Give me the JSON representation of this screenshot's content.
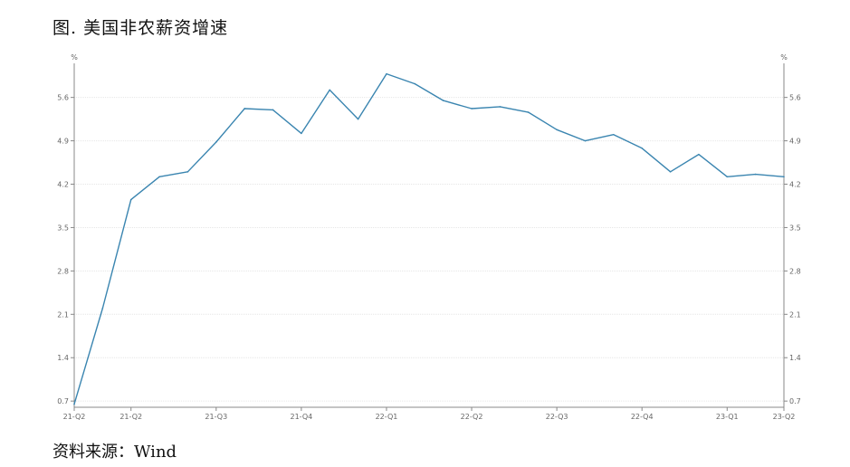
{
  "title": "图. 美国非农薪资增速",
  "source": "资料来源：Wind",
  "chart_data": {
    "type": "line",
    "title": "",
    "y_unit_left": "%",
    "y_unit_right": "%",
    "ylim": [
      0.6,
      6.15
    ],
    "yticks": [
      0.7,
      1.4,
      2.1,
      2.8,
      3.5,
      4.2,
      4.9,
      5.6
    ],
    "yticks_labels": [
      "0.7",
      "1.4",
      "2.1",
      "2.8",
      "3.5",
      "4.2",
      "4.9",
      "5.6"
    ],
    "x_tick_labels": [
      "21-Q2",
      "21-Q2",
      "21-Q3",
      "21-Q4",
      "22-Q1",
      "22-Q2",
      "22-Q3",
      "22-Q4",
      "23-Q1",
      "23-Q2"
    ],
    "x_tick_indices": [
      0,
      2,
      5,
      8,
      11,
      14,
      17,
      20,
      23,
      25
    ],
    "grid": true,
    "color": "#3a85b0",
    "series": [
      {
        "values": [
          0.65,
          2.2,
          3.95,
          4.32,
          4.4,
          4.88,
          5.42,
          5.4,
          5.02,
          5.72,
          5.25,
          5.98,
          5.82,
          5.55,
          5.42,
          5.45,
          5.36,
          5.08,
          4.9,
          5.0,
          4.78,
          4.4,
          4.68,
          4.32,
          4.36,
          4.32
        ]
      }
    ]
  }
}
